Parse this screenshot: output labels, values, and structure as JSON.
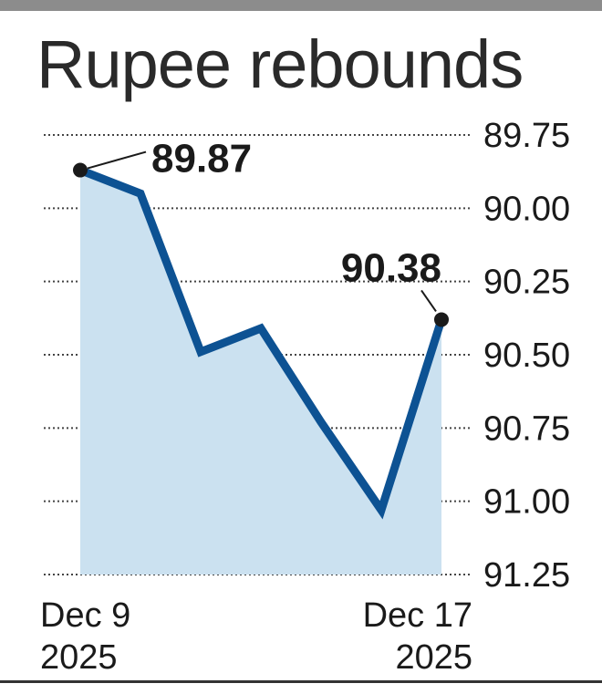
{
  "title": "Rupee rebounds",
  "chart_data": {
    "type": "area",
    "title": "Rupee rebounds",
    "x": [
      "Dec 9 2025",
      "",
      "",
      "",
      "",
      "",
      "Dec 17 2025"
    ],
    "x_tick_labels": [
      {
        "line1": "Dec 9",
        "line2": "2025"
      },
      {
        "line1": "Dec 17",
        "line2": "2025"
      }
    ],
    "series": [
      {
        "values": [
          89.87,
          89.95,
          90.49,
          90.41,
          90.73,
          91.03,
          90.38
        ]
      }
    ],
    "y_ticks": [
      "89.75",
      "90.00",
      "90.25",
      "90.50",
      "90.75",
      "91.00",
      "91.25"
    ],
    "ylim": [
      89.75,
      91.25
    ],
    "y_inverted": true,
    "grid": true,
    "annotations": [
      {
        "label": "89.87",
        "point_index": 0
      },
      {
        "label": "90.38",
        "point_index": 6
      }
    ],
    "colors": {
      "line": "#0d5293",
      "fill": "#cbe1f0",
      "grid": "#444444"
    }
  }
}
